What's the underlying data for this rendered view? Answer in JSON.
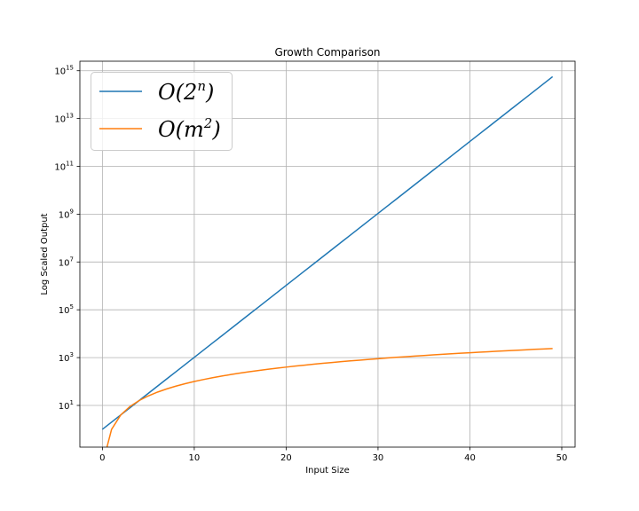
{
  "chart_data": {
    "type": "line",
    "title": "Growth Comparison",
    "xlabel": "Input Size",
    "ylabel": "Log Scaled Output",
    "yscale": "log",
    "xlim": [
      -2.45,
      51.45
    ],
    "ylim": [
      0.18,
      2500000000000000.0
    ],
    "xticks": [
      0,
      10,
      20,
      30,
      40,
      50
    ],
    "xtick_labels": [
      "0",
      "10",
      "20",
      "30",
      "40",
      "50"
    ],
    "yticks": [
      10,
      1000,
      100000,
      10000000,
      1000000000,
      100000000000,
      10000000000000,
      1000000000000000
    ],
    "ytick_bases": [
      "10",
      "10",
      "10",
      "10",
      "10",
      "10",
      "10",
      "10"
    ],
    "ytick_exponents": [
      "1",
      "3",
      "5",
      "7",
      "9",
      "11",
      "13",
      "15"
    ],
    "grid": true,
    "legend_position": "top-left",
    "series": [
      {
        "name": "O(2^n)",
        "legend_main": "O(2",
        "legend_sup": "n",
        "legend_close": ")",
        "color": "#1f77b4",
        "formula": "2^x",
        "x_start": 0,
        "x_end": 49
      },
      {
        "name": "O(m^2)",
        "legend_main": "O(m",
        "legend_sup": "2",
        "legend_close": ")",
        "color": "#ff7f0e",
        "formula": "x^2",
        "x_start": 0,
        "x_end": 49
      }
    ]
  }
}
